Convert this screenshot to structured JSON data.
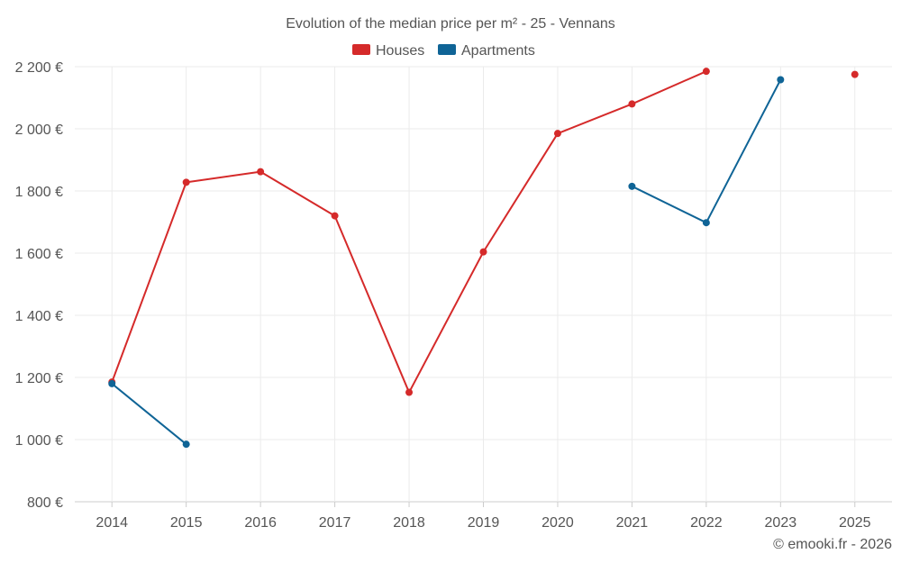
{
  "colors": {
    "houses": "#d52a2a",
    "apartments": "#0f6496"
  },
  "chart_data": {
    "type": "line",
    "title": "Evolution of the median price per m² - 25 - Vennans",
    "categories": [
      "2014",
      "2015",
      "2016",
      "2017",
      "2018",
      "2019",
      "2020",
      "2021",
      "2022",
      "2023",
      "2025"
    ],
    "ylim": [
      800,
      2200
    ],
    "yticks": [
      800,
      1000,
      1200,
      1400,
      1600,
      1800,
      2000,
      2200
    ],
    "ytick_labels": [
      "800 €",
      "1 000 €",
      "1 200 €",
      "1 400 €",
      "1 600 €",
      "1 800 €",
      "2 000 €",
      "2 200 €"
    ],
    "series": [
      {
        "name": "Houses",
        "color": "#d52a2a",
        "values": [
          1185,
          1828,
          1862,
          1720,
          1152,
          1604,
          1985,
          2080,
          2185,
          null,
          2175
        ]
      },
      {
        "name": "Apartments",
        "color": "#0f6496",
        "values": [
          1180,
          985,
          null,
          null,
          null,
          null,
          null,
          1815,
          1698,
          2158,
          null
        ]
      }
    ],
    "legend_position": "top-center",
    "grid": true
  },
  "credit": "© emooki.fr - 2026"
}
